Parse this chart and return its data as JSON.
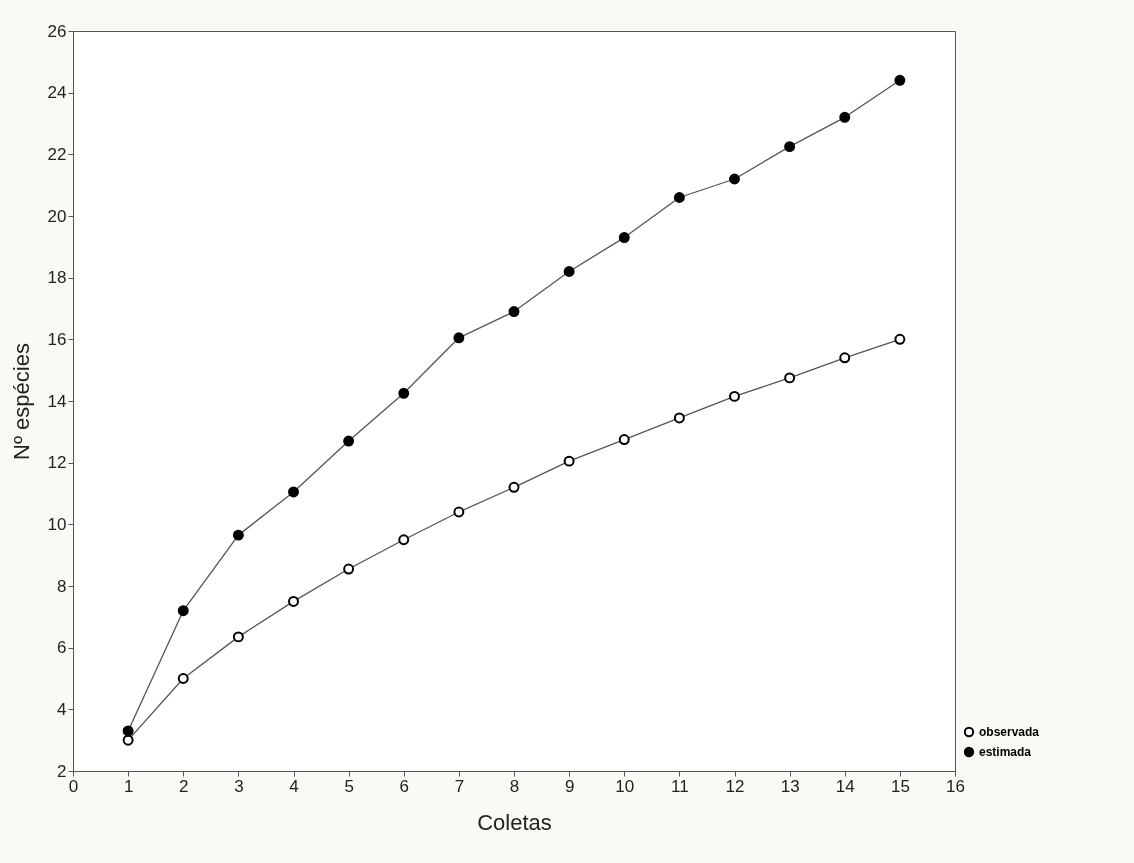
{
  "chart_data": {
    "type": "line",
    "xlabel": "Coletas",
    "ylabel": "Nº espécies",
    "x": [
      1,
      2,
      3,
      4,
      5,
      6,
      7,
      8,
      9,
      10,
      11,
      12,
      13,
      14,
      15
    ],
    "series": [
      {
        "name": "observada",
        "color": "#ffffff",
        "values": [
          3.0,
          5.0,
          6.35,
          7.5,
          8.55,
          9.5,
          10.4,
          11.2,
          12.05,
          12.75,
          13.45,
          14.15,
          14.75,
          15.4,
          16.0
        ]
      },
      {
        "name": "estimada",
        "color": "#000000",
        "values": [
          3.3,
          7.2,
          9.65,
          11.05,
          12.7,
          14.25,
          16.05,
          16.9,
          18.2,
          19.3,
          20.6,
          21.2,
          22.25,
          23.2,
          24.4
        ]
      }
    ],
    "xlim": [
      0,
      16
    ],
    "xticks": [
      0,
      1,
      2,
      3,
      4,
      5,
      6,
      7,
      8,
      9,
      10,
      11,
      12,
      13,
      14,
      15,
      16
    ],
    "ylim": [
      2,
      26
    ],
    "yticks": [
      2,
      4,
      6,
      8,
      10,
      12,
      14,
      16,
      18,
      20,
      22,
      24,
      26
    ],
    "grid": false,
    "legend": "bottom right",
    "marker": "circle",
    "line_style": "solid"
  }
}
